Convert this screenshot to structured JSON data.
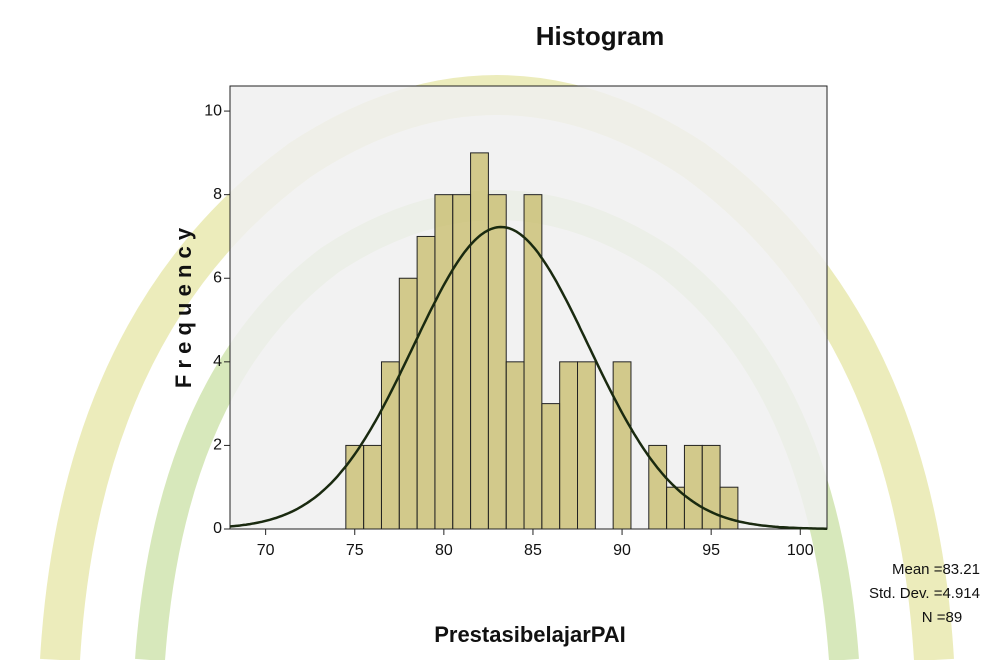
{
  "chart_data": {
    "type": "histogram",
    "title": "Histogram",
    "x_label": "PrestasibelajarPAI",
    "y_label": "F r e q u e n c y",
    "bins": [
      74.5,
      75.5,
      76.5,
      77.5,
      78.5,
      79.5,
      80.5,
      81.5,
      82.5,
      83.5,
      84.5,
      85.5,
      86.5,
      87.5,
      88.5,
      89.5,
      90.5,
      91.5,
      92.5,
      93.5,
      94.5,
      95.5,
      96.5
    ],
    "values": [
      2,
      2,
      4,
      6,
      7,
      8,
      8,
      9,
      8,
      4,
      8,
      3,
      4,
      4,
      0,
      4,
      0,
      2,
      1,
      2,
      2,
      1
    ],
    "color": "rgba(196,184,96,0.7)",
    "xlim": [
      68,
      101.5
    ],
    "xticks": [
      70,
      75,
      80,
      85,
      90,
      95,
      100
    ],
    "ylim": [
      0,
      10.6
    ],
    "yticks": [
      0,
      2,
      4,
      6,
      8,
      10
    ],
    "normal_curve": {
      "mean": 83.21,
      "std": 4.914,
      "n": 89
    },
    "annotations": [
      "Mean =83.21",
      "Std. Dev. =4.914",
      "N =89"
    ]
  }
}
